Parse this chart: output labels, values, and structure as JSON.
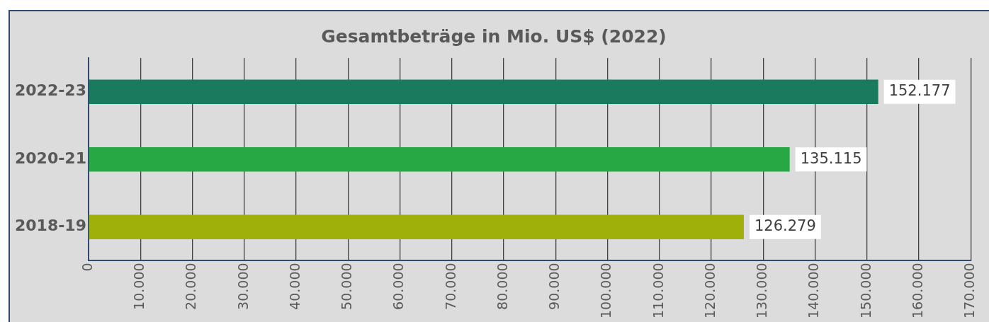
{
  "chart_data": {
    "type": "bar",
    "orientation": "horizontal",
    "title": "Gesamtbeträge in Mio. US$ (2022)",
    "categories": [
      "2022-23",
      "2020-21",
      "2018-19"
    ],
    "values": [
      152177,
      135115,
      126279
    ],
    "colors": [
      "#1a7a5e",
      "#27a844",
      "#9fb00a"
    ],
    "value_labels": [
      "152.177",
      "135.115",
      "126.279"
    ],
    "xlim": [
      0,
      170000
    ],
    "xticks": [
      0,
      {
        "value": 10000,
        "label": "10.000"
      },
      {
        "value": 20000,
        "label": "20.000"
      },
      {
        "value": 30000,
        "label": "30.000"
      },
      {
        "value": 40000,
        "label": "40.000"
      },
      {
        "value": 50000,
        "label": "50.000"
      },
      {
        "value": 60000,
        "label": "60.000"
      },
      {
        "value": 70000,
        "label": "70.000"
      },
      {
        "value": 80000,
        "label": "80.000"
      },
      {
        "value": 90000,
        "label": "90.000"
      },
      {
        "value": 100000,
        "label": "100.000"
      },
      {
        "value": 110000,
        "label": "110.000"
      },
      {
        "value": 120000,
        "label": "120.000"
      },
      {
        "value": 130000,
        "label": "130.000"
      },
      {
        "value": 140000,
        "label": "140.000"
      },
      {
        "value": 150000,
        "label": "150.000"
      },
      {
        "value": 160000,
        "label": "160.000"
      },
      {
        "value": 170000,
        "label": "170.000"
      }
    ],
    "grid": "x",
    "legend": false
  }
}
